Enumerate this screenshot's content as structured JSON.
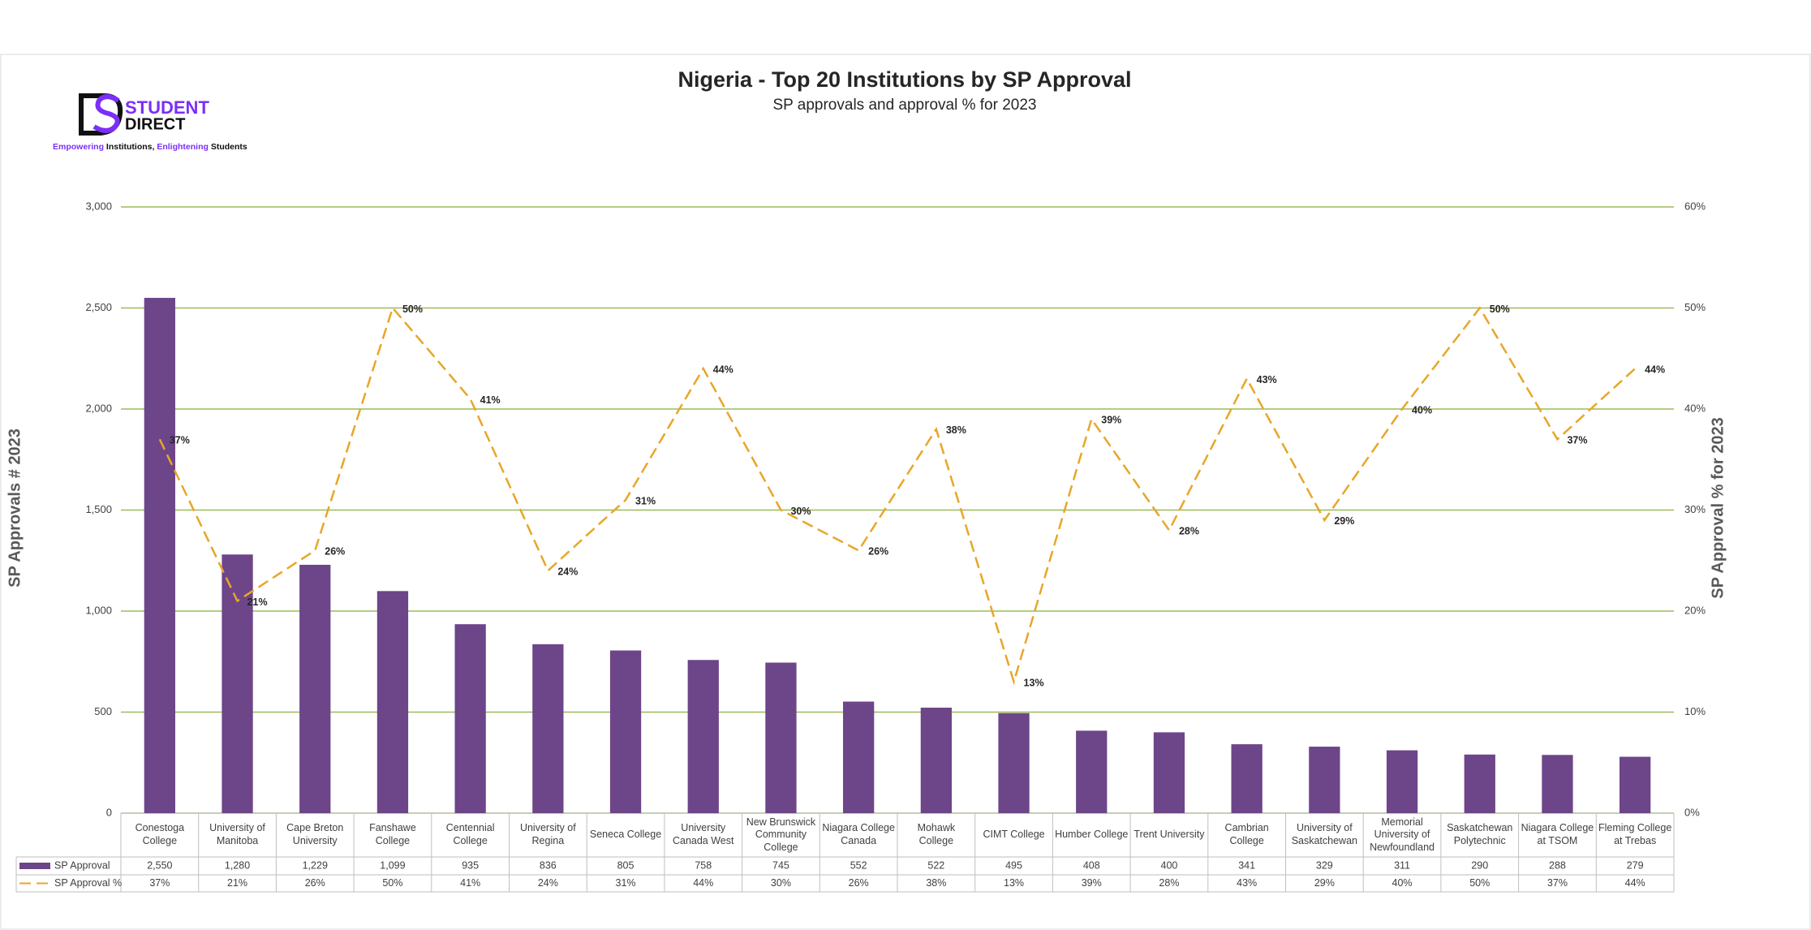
{
  "logo": {
    "name_top": "STUDENT",
    "name_bottom": "DIRECT",
    "tagline": [
      "Empowering",
      " Institutions, ",
      "Enlightening",
      " Students"
    ]
  },
  "chart_data": {
    "type": "combo",
    "title": "Nigeria - Top 20 Institutions by SP Approval",
    "subtitle": "SP approvals and approval % for 2023",
    "y_label": "SP Approvals # 2023",
    "y2_label": "SP Approval % for 2023",
    "categories": [
      "Conestoga College",
      "University of Manitoba",
      "Cape Breton University",
      "Fanshawe College",
      "Centennial College",
      "University of Regina",
      "Seneca College",
      "University Canada West",
      "New Brunswick Community College",
      "Niagara College Canada",
      "Mohawk College",
      "CIMT College",
      "Humber College",
      "Trent University",
      "Cambrian College",
      "University of Saskatchewan",
      "Memorial University of Newfoundland",
      "Saskatchewan Polytechnic",
      "Niagara College at TSOM",
      "Fleming College at Trebas"
    ],
    "series": [
      {
        "name": "SP Approval",
        "type": "bar",
        "color": "#6d4589",
        "values": [
          2550,
          1280,
          1229,
          1099,
          935,
          836,
          805,
          758,
          745,
          552,
          522,
          495,
          408,
          400,
          341,
          329,
          311,
          290,
          288,
          279
        ],
        "value_labels": [
          "2,550",
          "1,280",
          "1,229",
          "1,099",
          "935",
          "836",
          "805",
          "758",
          "745",
          "552",
          "522",
          "495",
          "408",
          "400",
          "341",
          "329",
          "311",
          "290",
          "288",
          "279"
        ]
      },
      {
        "name": "SP Approval %",
        "type": "line",
        "axis": "y2",
        "color": "#e8a628",
        "values": [
          37,
          21,
          26,
          50,
          41,
          24,
          31,
          44,
          30,
          26,
          38,
          13,
          39,
          28,
          43,
          29,
          40,
          50,
          37,
          44
        ],
        "value_labels": [
          "37%",
          "21%",
          "26%",
          "50%",
          "41%",
          "24%",
          "31%",
          "44%",
          "30%",
          "26%",
          "38%",
          "13%",
          "39%",
          "28%",
          "43%",
          "29%",
          "40%",
          "50%",
          "37%",
          "44%"
        ]
      }
    ],
    "ylim": [
      0,
      3000
    ],
    "yticks": [
      0,
      500,
      {
        "value": 1000,
        "label": "1,000"
      },
      {
        "value": 1500,
        "label": "1,500"
      },
      {
        "value": 2000,
        "label": "2,000"
      },
      {
        "value": 2500,
        "label": "2,500"
      },
      {
        "value": 3000,
        "label": "3,000"
      }
    ],
    "y2lim": [
      0,
      60
    ],
    "y2ticks": [
      {
        "value": 0,
        "label": "0%"
      },
      {
        "value": 10,
        "label": "10%"
      },
      {
        "value": 20,
        "label": "20%"
      },
      {
        "value": 30,
        "label": "30%"
      },
      {
        "value": 40,
        "label": "40%"
      },
      {
        "value": 50,
        "label": "50%"
      },
      {
        "value": 60,
        "label": "60%"
      }
    ],
    "grid": true,
    "grid_color": "#9bbb59"
  }
}
